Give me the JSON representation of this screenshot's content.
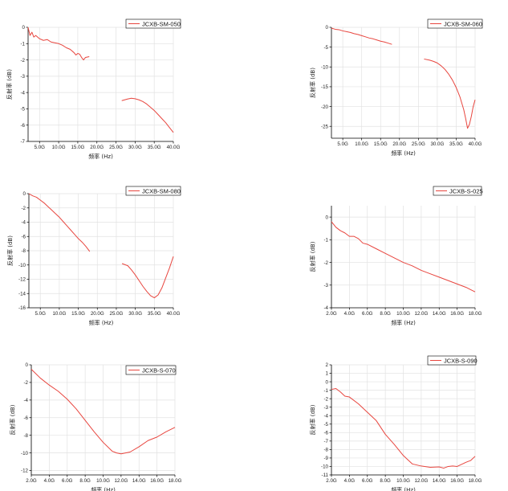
{
  "colors": {
    "series": "#e8463f",
    "grid": "#e2e2e2",
    "axis": "#000000"
  },
  "chart_data": [
    {
      "type": "line",
      "legend": "JCXB-SM-050",
      "legend_position": "top-right",
      "ylabel": "反射率 (dB)",
      "xlabel": "频率 (Hz)",
      "xlim": [
        2,
        40
      ],
      "ylim": [
        -7,
        0
      ],
      "xticks": [
        5,
        10,
        15,
        20,
        25,
        30,
        35,
        40
      ],
      "xtick_labels": [
        "5.0G",
        "10.0G",
        "15.0G",
        "20.0G",
        "25.0G",
        "30.0G",
        "35.0G",
        "40.0G"
      ],
      "yticks": [
        0,
        -1,
        -2,
        -3,
        -4,
        -5,
        -6,
        -7
      ],
      "ytick_labels": [
        "0",
        "-1",
        "-2",
        "-3",
        "-4",
        "-5",
        "-6",
        "-7"
      ],
      "grid": true,
      "segments": [
        {
          "x": [
            2.0,
            2.5,
            3.0,
            3.5,
            4.0,
            5.0,
            6.0,
            7.0,
            8.0,
            9.0,
            10.0,
            11.0,
            12.0,
            13.0,
            14.0,
            14.5,
            15.0,
            15.5,
            16.0,
            16.5,
            17.0,
            18.0
          ],
          "y": [
            0.0,
            -0.5,
            -0.3,
            -0.6,
            -0.5,
            -0.7,
            -0.8,
            -0.75,
            -0.9,
            -0.95,
            -1.0,
            -1.1,
            -1.25,
            -1.35,
            -1.55,
            -1.7,
            -1.6,
            -1.65,
            -1.85,
            -2.0,
            -1.85,
            -1.8
          ]
        },
        {
          "x": [
            26.5,
            28,
            29,
            30,
            31,
            32,
            33,
            34,
            35,
            36,
            37,
            38,
            39,
            40
          ],
          "y": [
            -4.5,
            -4.4,
            -4.35,
            -4.38,
            -4.45,
            -4.55,
            -4.7,
            -4.9,
            -5.1,
            -5.35,
            -5.6,
            -5.85,
            -6.15,
            -6.45
          ]
        }
      ]
    },
    {
      "type": "line",
      "legend": "JCXB-SM-060",
      "legend_position": "top-right",
      "ylabel": "反射率 (dB)",
      "xlabel": "频率 (Hz)",
      "xlim": [
        2,
        40
      ],
      "ylim": [
        -28,
        0
      ],
      "xticks": [
        5,
        10,
        15,
        20,
        25,
        30,
        35,
        40
      ],
      "xtick_labels": [
        "5.0G",
        "10.0G",
        "15.0G",
        "20.0G",
        "25.0G",
        "30.0G",
        "35.0G",
        "40.0G"
      ],
      "yticks": [
        0,
        -5,
        -10,
        -15,
        -20,
        -25
      ],
      "ytick_labels": [
        "0",
        "-5",
        "-10",
        "-15",
        "-20",
        "-25"
      ],
      "grid": true,
      "segments": [
        {
          "x": [
            2,
            3,
            4,
            5,
            6,
            7,
            8,
            9,
            10,
            11,
            12,
            13,
            14,
            15,
            16,
            17,
            18
          ],
          "y": [
            -0.2,
            -0.5,
            -0.6,
            -0.9,
            -1.1,
            -1.3,
            -1.6,
            -1.8,
            -2.1,
            -2.4,
            -2.7,
            -2.9,
            -3.2,
            -3.5,
            -3.7,
            -4.0,
            -4.3
          ]
        },
        {
          "x": [
            26.5,
            28,
            29,
            30,
            31,
            32,
            33,
            34,
            35,
            36,
            37,
            37.5,
            38,
            38.5,
            39,
            39.5,
            40
          ],
          "y": [
            -8.0,
            -8.3,
            -8.6,
            -9.0,
            -9.7,
            -10.6,
            -11.8,
            -13.3,
            -15.2,
            -17.6,
            -20.8,
            -23.0,
            -25.5,
            -24.5,
            -22.5,
            -20.0,
            -18.3
          ]
        }
      ]
    },
    {
      "type": "line",
      "legend": "JCXB-SM-080",
      "legend_position": "top-right",
      "ylabel": "反射率 (dB)",
      "xlabel": "频率 (Hz)",
      "xlim": [
        2,
        40
      ],
      "ylim": [
        -16,
        0
      ],
      "xticks": [
        5,
        10,
        15,
        20,
        25,
        30,
        35,
        40
      ],
      "xtick_labels": [
        "5.0G",
        "10.0G",
        "15.0G",
        "20.0G",
        "25.0G",
        "30.0G",
        "35.0G",
        "40.0G"
      ],
      "yticks": [
        0,
        -2,
        -4,
        -6,
        -8,
        -10,
        -12,
        -14,
        -16
      ],
      "ytick_labels": [
        "0",
        "-2",
        "-4",
        "-6",
        "-8",
        "-10",
        "-12",
        "-14",
        "-16"
      ],
      "grid": true,
      "segments": [
        {
          "x": [
            2,
            3,
            4,
            5,
            6,
            7,
            8,
            9,
            10,
            11,
            12,
            13,
            14,
            15,
            16,
            17,
            18
          ],
          "y": [
            0.0,
            -0.3,
            -0.5,
            -0.9,
            -1.3,
            -1.8,
            -2.3,
            -2.8,
            -3.3,
            -3.9,
            -4.5,
            -5.1,
            -5.7,
            -6.3,
            -6.8,
            -7.4,
            -8.1
          ]
        },
        {
          "x": [
            26.5,
            28,
            29,
            30,
            31,
            32,
            33,
            34,
            35,
            36,
            37,
            38,
            39,
            40
          ],
          "y": [
            -9.8,
            -10.1,
            -10.7,
            -11.4,
            -12.2,
            -13.0,
            -13.7,
            -14.3,
            -14.6,
            -14.2,
            -13.2,
            -11.8,
            -10.4,
            -8.8
          ]
        }
      ]
    },
    {
      "type": "line",
      "legend": "JCXB-S-025",
      "legend_position": "top-right",
      "ylabel": "反射率 (dB)",
      "xlabel": "频率 (Hz)",
      "xlim": [
        2,
        18
      ],
      "ylim": [
        -4,
        0.5
      ],
      "xticks": [
        2,
        4,
        6,
        8,
        10,
        12,
        14,
        16,
        18
      ],
      "xtick_labels": [
        "2.0G",
        "4.0G",
        "6.0G",
        "8.0G",
        "10.0G",
        "12.0G",
        "14.0G",
        "16.0G",
        "18.0G"
      ],
      "yticks": [
        0,
        -1,
        -2,
        -3,
        -4
      ],
      "ytick_labels": [
        "0",
        "-1",
        "-2",
        "-3",
        "-4"
      ],
      "grid": true,
      "segments": [
        {
          "x": [
            2.0,
            2.5,
            3.0,
            3.5,
            4.0,
            4.5,
            5.0,
            5.5,
            6.0,
            7.0,
            8.0,
            9.0,
            10.0,
            11.0,
            12.0,
            13.0,
            14.0,
            15.0,
            16.0,
            17.0,
            17.5,
            18.0
          ],
          "y": [
            -0.2,
            -0.45,
            -0.6,
            -0.7,
            -0.85,
            -0.85,
            -0.95,
            -1.15,
            -1.2,
            -1.4,
            -1.6,
            -1.8,
            -2.0,
            -2.15,
            -2.35,
            -2.5,
            -2.65,
            -2.8,
            -2.95,
            -3.1,
            -3.2,
            -3.3
          ]
        }
      ]
    },
    {
      "type": "line",
      "legend": "JCXB-S-070",
      "legend_position": "top-right",
      "ylabel": "反射率 (dB)",
      "xlabel": "频率 (Hz)",
      "xlim": [
        2,
        18
      ],
      "ylim": [
        -12.5,
        0
      ],
      "xticks": [
        2,
        4,
        6,
        8,
        10,
        12,
        14,
        16,
        18
      ],
      "xtick_labels": [
        "2.0G",
        "4.0G",
        "6.0G",
        "8.0G",
        "10.0G",
        "12.0G",
        "14.0G",
        "16.0G",
        "18.0G"
      ],
      "yticks": [
        0,
        -2,
        -4,
        -6,
        -8,
        -10,
        -12
      ],
      "ytick_labels": [
        "0",
        "-2",
        "-4",
        "-6",
        "-8",
        "-10",
        "-12"
      ],
      "grid": true,
      "segments": [
        {
          "x": [
            2,
            3,
            4,
            5,
            6,
            7,
            8,
            9,
            10,
            11,
            11.5,
            12,
            12.5,
            13,
            14,
            15,
            16,
            17,
            18
          ],
          "y": [
            -0.5,
            -1.5,
            -2.3,
            -3.0,
            -3.9,
            -5.0,
            -6.3,
            -7.6,
            -8.8,
            -9.8,
            -10.0,
            -10.1,
            -10.0,
            -9.9,
            -9.3,
            -8.6,
            -8.2,
            -7.6,
            -7.1
          ]
        }
      ]
    },
    {
      "type": "line",
      "legend": "JCXB-S-090",
      "legend_position": "top-right",
      "ylabel": "反射率 (dB)",
      "xlabel": "频率 (Hz)",
      "xlim": [
        2,
        18
      ],
      "ylim": [
        -11,
        2
      ],
      "xticks": [
        2,
        4,
        6,
        8,
        10,
        12,
        14,
        16,
        18
      ],
      "xtick_labels": [
        "2.0G",
        "4.0G",
        "6.0G",
        "8.0G",
        "10.0G",
        "12.0G",
        "14.0G",
        "16.0G",
        "18.0G"
      ],
      "yticks": [
        2,
        1,
        0,
        -1,
        -2,
        -3,
        -4,
        -5,
        -6,
        -7,
        -8,
        -9,
        -10,
        -11
      ],
      "ytick_labels": [
        "2",
        "1",
        "0",
        "-1",
        "-2",
        "-3",
        "-4",
        "-5",
        "-6",
        "-7",
        "-8",
        "-9",
        "-10",
        "-11"
      ],
      "grid": true,
      "segments": [
        {
          "x": [
            2.0,
            2.5,
            3.0,
            3.5,
            4.0,
            5.0,
            6.0,
            7.0,
            8.0,
            9.0,
            10.0,
            11.0,
            12.0,
            13.0,
            14.0,
            14.5,
            15.0,
            15.5,
            16.0,
            17.0,
            17.5,
            18.0
          ],
          "y": [
            -0.9,
            -0.8,
            -1.2,
            -1.7,
            -1.8,
            -2.6,
            -3.6,
            -4.6,
            -6.2,
            -7.4,
            -8.7,
            -9.7,
            -9.95,
            -10.1,
            -10.05,
            -10.2,
            -10.0,
            -9.95,
            -10.0,
            -9.5,
            -9.3,
            -8.8
          ]
        }
      ]
    }
  ]
}
